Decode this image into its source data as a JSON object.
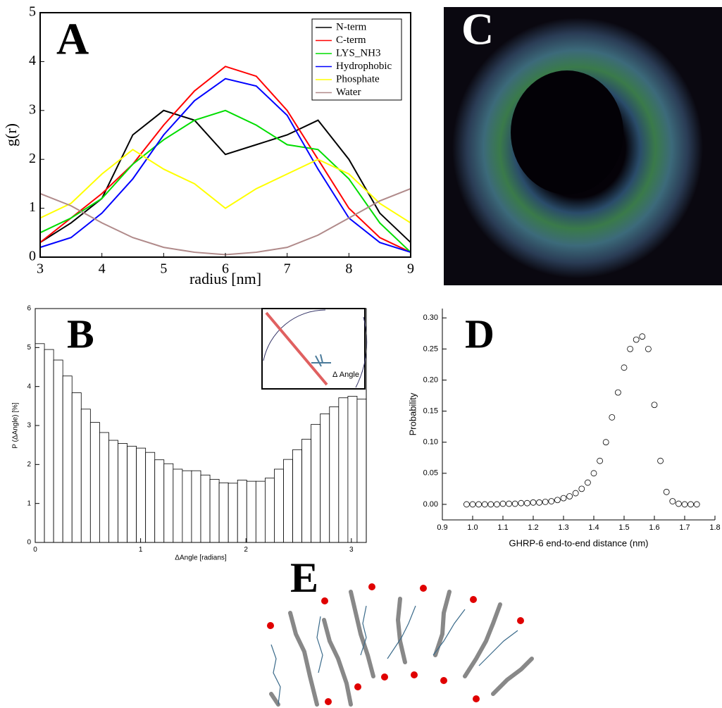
{
  "chart_data": [
    {
      "type": "line",
      "panel_label": "A",
      "xlabel": "radius [nm]",
      "ylabel": "g(r)",
      "x": [
        3,
        3.5,
        4,
        4.5,
        5,
        5.5,
        6,
        6.5,
        7,
        7.5,
        8,
        8.5,
        9
      ],
      "series": [
        {
          "name": "N-term",
          "color": "#000000",
          "values": [
            0.3,
            0.7,
            1.2,
            2.5,
            3.0,
            2.8,
            2.1,
            2.3,
            2.5,
            2.8,
            2.0,
            0.9,
            0.3
          ]
        },
        {
          "name": "C-term",
          "color": "#ff0000",
          "values": [
            0.3,
            0.8,
            1.3,
            1.9,
            2.7,
            3.4,
            3.9,
            3.7,
            3.0,
            2.0,
            1.0,
            0.4,
            0.1
          ]
        },
        {
          "name": "LYS_NH3",
          "color": "#00dd00",
          "values": [
            0.5,
            0.8,
            1.2,
            1.9,
            2.4,
            2.8,
            3.0,
            2.7,
            2.3,
            2.2,
            1.6,
            0.7,
            0.1
          ]
        },
        {
          "name": "Hydrophobic",
          "color": "#0000ff",
          "values": [
            0.2,
            0.4,
            0.9,
            1.6,
            2.5,
            3.2,
            3.65,
            3.5,
            2.9,
            1.8,
            0.8,
            0.3,
            0.1
          ]
        },
        {
          "name": "Phosphate",
          "color": "#ffff00",
          "values": [
            0.8,
            1.1,
            1.7,
            2.2,
            1.8,
            1.5,
            1.0,
            1.4,
            1.7,
            2.0,
            1.7,
            1.1,
            0.7
          ]
        },
        {
          "name": "Water",
          "color": "#b08a8a",
          "values": [
            1.3,
            1.05,
            0.7,
            0.4,
            0.2,
            0.1,
            0.05,
            0.1,
            0.2,
            0.45,
            0.8,
            1.15,
            1.4
          ]
        }
      ],
      "xlim": [
        3,
        9
      ],
      "xticks": [
        3,
        4,
        5,
        6,
        7,
        8,
        9
      ],
      "ylim": [
        0,
        5
      ],
      "yticks": [
        0,
        1,
        2,
        3,
        4,
        5
      ],
      "legend": "upper right"
    },
    {
      "type": "histogram",
      "panel_label": "B",
      "xlabel": "ΔAngle [radians]",
      "ylabel": "P (ΔAngle) [%]",
      "annotation": "Δ Angle",
      "bins": [
        0,
        0.0873,
        0.1745,
        0.2618,
        0.3491,
        0.4363,
        0.5236,
        0.6109,
        0.6981,
        0.7854,
        0.8727,
        0.9599,
        1.0472,
        1.1345,
        1.2217,
        1.309,
        1.3963,
        1.4835,
        1.5708,
        1.6581,
        1.7453,
        1.8326,
        1.9199,
        2.0071,
        2.0944,
        2.1817,
        2.2689,
        2.3562,
        2.4435,
        2.5307,
        2.618,
        2.7053,
        2.7925,
        2.8798,
        2.9671,
        3.0543,
        3.1416
      ],
      "values": [
        5.1,
        4.95,
        4.68,
        4.27,
        3.84,
        3.42,
        3.08,
        2.82,
        2.62,
        2.54,
        2.47,
        2.42,
        2.31,
        2.12,
        2.02,
        1.88,
        1.84,
        1.84,
        1.73,
        1.62,
        1.53,
        1.52,
        1.6,
        1.57,
        1.57,
        1.65,
        1.88,
        2.13,
        2.38,
        2.65,
        3.03,
        3.3,
        3.48,
        3.71,
        3.75,
        3.68
      ],
      "color": "#ffffff",
      "xlim": [
        0,
        3.1416
      ],
      "xticks": [
        0,
        1,
        2,
        3
      ],
      "ylim": [
        0,
        6
      ],
      "yticks": [
        0,
        1,
        2,
        3,
        4,
        5,
        6
      ]
    },
    {
      "type": "scatter",
      "panel_label": "D",
      "xlabel": "GHRP-6 end-to-end distance (nm)",
      "ylabel": "Probability",
      "x": [
        0.98,
        1.0,
        1.02,
        1.04,
        1.06,
        1.08,
        1.1,
        1.12,
        1.14,
        1.16,
        1.18,
        1.2,
        1.22,
        1.24,
        1.26,
        1.28,
        1.3,
        1.32,
        1.34,
        1.36,
        1.38,
        1.4,
        1.42,
        1.44,
        1.46,
        1.48,
        1.5,
        1.52,
        1.54,
        1.56,
        1.58,
        1.6,
        1.62,
        1.64,
        1.66,
        1.68,
        1.7,
        1.72,
        1.74
      ],
      "values": [
        0,
        0,
        0,
        0,
        0,
        0,
        0.001,
        0.001,
        0.001,
        0.002,
        0.002,
        0.003,
        0.003,
        0.004,
        0.005,
        0.007,
        0.01,
        0.013,
        0.018,
        0.025,
        0.035,
        0.05,
        0.07,
        0.1,
        0.14,
        0.18,
        0.22,
        0.25,
        0.265,
        0.27,
        0.25,
        0.16,
        0.07,
        0.02,
        0.005,
        0.001,
        0,
        0,
        0
      ],
      "color": "#000000",
      "xlim": [
        0.9,
        1.8
      ],
      "xticks": [
        {
          "value": 0.9,
          "label": "0.9"
        },
        {
          "value": 1.0,
          "label": "1.0"
        },
        {
          "value": 1.1,
          "label": "1.1"
        },
        {
          "value": 1.2,
          "label": "1.2"
        },
        {
          "value": 1.3,
          "label": "1.3"
        },
        {
          "value": 1.4,
          "label": "1.4"
        },
        {
          "value": 1.5,
          "label": "1.5"
        },
        {
          "value": 1.6,
          "label": "1.6"
        },
        {
          "value": 1.7,
          "label": "1.7"
        },
        {
          "value": 1.8,
          "label": "1.8"
        }
      ],
      "ylim": [
        -0.025,
        0.315
      ],
      "yticks": [
        {
          "value": 0,
          "label": "0.00"
        },
        {
          "value": 0.05,
          "label": "0.05"
        },
        {
          "value": 0.1,
          "label": "0.10"
        },
        {
          "value": 0.15,
          "label": "0.15"
        },
        {
          "value": 0.2,
          "label": "0.20"
        },
        {
          "value": 0.25,
          "label": "0.25"
        },
        {
          "value": 0.3,
          "label": "0.30"
        }
      ]
    }
  ],
  "panel_c": {
    "label": "C"
  },
  "panel_e": {
    "label": "E"
  }
}
